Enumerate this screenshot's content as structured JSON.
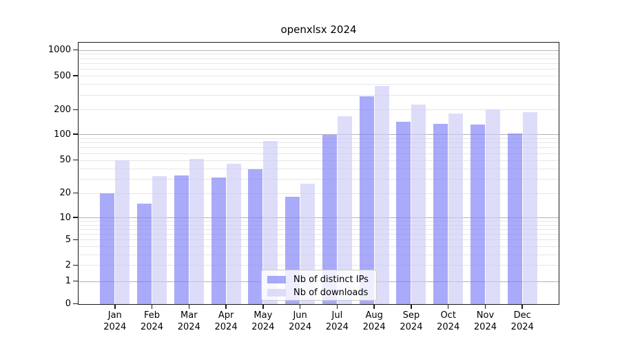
{
  "title": "openxlsx 2024",
  "chart_data": {
    "type": "bar",
    "title": "openxlsx 2024",
    "x_categories": [
      "Jan 2024",
      "Feb 2024",
      "Mar 2024",
      "Apr 2024",
      "May 2024",
      "Jun 2024",
      "Jul 2024",
      "Aug 2024",
      "Sep 2024",
      "Oct 2024",
      "Nov 2024",
      "Dec 2024"
    ],
    "months": [
      "Jan",
      "Feb",
      "Mar",
      "Apr",
      "May",
      "Jun",
      "Jul",
      "Aug",
      "Sep",
      "Oct",
      "Nov",
      "Dec"
    ],
    "year": "2024",
    "series": [
      {
        "name": "Nb of distinct IPs",
        "fill": "rgba(129,129,247,0.68)",
        "hex": "#a9a9fa",
        "values": [
          20,
          15,
          33,
          31,
          39,
          18,
          98,
          285,
          143,
          134,
          132,
          102
        ]
      },
      {
        "name": "Nb of downloads",
        "fill": "rgba(205,205,248,0.68)",
        "hex": "#dcdcfa",
        "values": [
          50,
          32,
          52,
          45,
          83,
          26,
          165,
          380,
          230,
          178,
          200,
          186
        ]
      }
    ],
    "y_ticks": [
      0,
      1,
      2,
      5,
      10,
      20,
      50,
      100,
      200,
      500,
      1000
    ],
    "y_scale": "log-like (log(1+x))",
    "ylim": [
      0,
      1250
    ],
    "grid": {
      "major_at": [
        1,
        10,
        100,
        1000
      ],
      "minor_at": [
        2,
        3,
        4,
        5,
        6,
        7,
        8,
        9,
        20,
        30,
        40,
        50,
        60,
        70,
        80,
        90,
        200,
        300,
        400,
        500,
        600,
        700,
        800,
        900
      ]
    },
    "legend": {
      "entries": [
        "Nb of distinct IPs",
        "Nb of downloads"
      ],
      "position": "lower center inside plot"
    }
  },
  "colors": {
    "grid_major": "#b2b2b2",
    "grid_minor": "#e6e6e6",
    "spine": "#1a1a1a",
    "text": "#000000",
    "background": "#ffffff",
    "legend_border": "#cccccc",
    "legend_bg": "rgba(255,255,255,0.8)"
  }
}
